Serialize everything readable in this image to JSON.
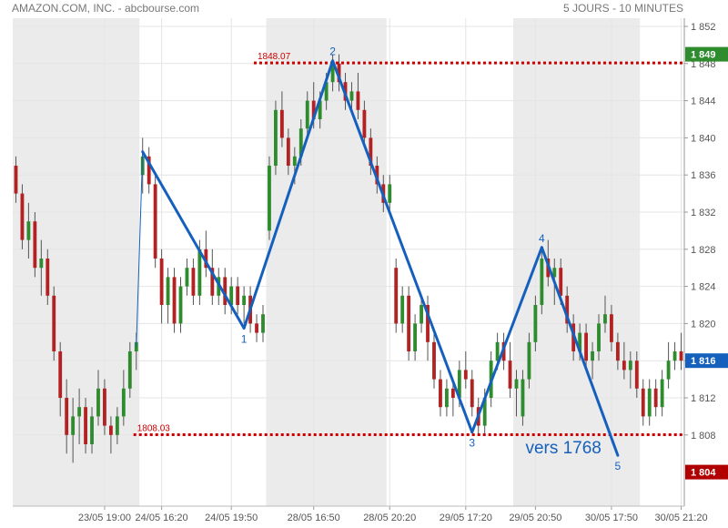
{
  "header": {
    "instrument": "AMAZON.COM, INC. - abcbourse.com",
    "period": "5 JOURS - 10 MINUTES"
  },
  "colors": {
    "up": "#2e8b2e",
    "down": "#b22222",
    "wick": "#555555",
    "session_shade": "#ebebeb",
    "grid": "#e4e4e4",
    "wave_line": "#1560bd",
    "level_line": "#cc0000",
    "badge_high": "#2e8b2e",
    "badge_last": "#1560bd",
    "badge_low": "#b00000"
  },
  "chart_data": {
    "type": "candlestick",
    "ylim": [
      1802,
      1852
    ],
    "y_ticks": [
      "1 852",
      "1 848",
      "1 844",
      "1 840",
      "1 836",
      "1 832",
      "1 828",
      "1 824",
      "1 820",
      "1 816",
      "1 812",
      "1 808"
    ],
    "y_tick_values": [
      1852,
      1848,
      1844,
      1840,
      1836,
      1832,
      1828,
      1824,
      1820,
      1816,
      1812,
      1808
    ],
    "x_ticks": [
      "23/05 19:00",
      "24/05 16:20",
      "24/05 19:50",
      "28/05 16:50",
      "28/05 20:20",
      "29/05 17:20",
      "29/05 20:50",
      "30/05 17:50",
      "30/05 21:20"
    ],
    "x_tick_index": [
      14,
      23,
      34,
      47,
      59,
      71,
      82,
      94,
      105
    ],
    "shaded_sessions": [
      [
        0,
        20
      ],
      [
        40,
        59
      ],
      [
        79,
        99
      ]
    ],
    "candles": [
      [
        1837,
        1838,
        1833,
        1834
      ],
      [
        1834,
        1835,
        1828,
        1829
      ],
      [
        1829,
        1833,
        1827,
        1831
      ],
      [
        1831,
        1832,
        1825,
        1826
      ],
      [
        1826,
        1829,
        1823,
        1827
      ],
      [
        1827,
        1828,
        1822,
        1823
      ],
      [
        1823,
        1824,
        1816,
        1817
      ],
      [
        1817,
        1818,
        1810,
        1812
      ],
      [
        1812,
        1814,
        1806,
        1808
      ],
      [
        1808,
        1812,
        1805,
        1810
      ],
      [
        1810,
        1813,
        1807,
        1811
      ],
      [
        1811,
        1812,
        1806,
        1807
      ],
      [
        1807,
        1811,
        1806,
        1810
      ],
      [
        1810,
        1815,
        1809,
        1813
      ],
      [
        1813,
        1814,
        1808,
        1809
      ],
      [
        1809,
        1810,
        1806,
        1808
      ],
      [
        1808,
        1811,
        1807,
        1810
      ],
      [
        1810,
        1815,
        1809,
        1813
      ],
      [
        1813,
        1818,
        1812,
        1817
      ],
      [
        1817,
        1819,
        1815,
        1818
      ],
      [
        1836,
        1840,
        1834,
        1838
      ],
      [
        1838,
        1839,
        1834,
        1835
      ],
      [
        1835,
        1836,
        1826,
        1827
      ],
      [
        1827,
        1828,
        1820,
        1822
      ],
      [
        1822,
        1826,
        1820,
        1825
      ],
      [
        1825,
        1826,
        1819,
        1820
      ],
      [
        1820,
        1825,
        1819,
        1824
      ],
      [
        1824,
        1827,
        1823,
        1826
      ],
      [
        1826,
        1827,
        1822,
        1823
      ],
      [
        1823,
        1829,
        1822,
        1828
      ],
      [
        1828,
        1830,
        1825,
        1826
      ],
      [
        1826,
        1828,
        1822,
        1823
      ],
      [
        1823,
        1826,
        1822,
        1825
      ],
      [
        1825,
        1826,
        1821,
        1822
      ],
      [
        1822,
        1825,
        1821,
        1824
      ],
      [
        1824,
        1825,
        1821,
        1822
      ],
      [
        1822,
        1824,
        1820,
        1823
      ],
      [
        1823,
        1824,
        1819,
        1820
      ],
      [
        1820,
        1821,
        1818,
        1819
      ],
      [
        1819,
        1822,
        1818,
        1821
      ],
      [
        1830,
        1838,
        1829,
        1837
      ],
      [
        1837,
        1844,
        1836,
        1843
      ],
      [
        1843,
        1845,
        1839,
        1840
      ],
      [
        1840,
        1841,
        1836,
        1837
      ],
      [
        1837,
        1839,
        1835,
        1838
      ],
      [
        1838,
        1842,
        1837,
        1841
      ],
      [
        1841,
        1845,
        1840,
        1844
      ],
      [
        1844,
        1846,
        1841,
        1842
      ],
      [
        1842,
        1845,
        1841,
        1844
      ],
      [
        1844,
        1847,
        1843,
        1846
      ],
      [
        1846,
        1849,
        1845,
        1848
      ],
      [
        1848,
        1849,
        1845,
        1846
      ],
      [
        1846,
        1847,
        1843,
        1844
      ],
      [
        1844,
        1846,
        1843,
        1845
      ],
      [
        1845,
        1847,
        1842,
        1843
      ],
      [
        1843,
        1844,
        1839,
        1840
      ],
      [
        1840,
        1841,
        1836,
        1837
      ],
      [
        1837,
        1838,
        1834,
        1835
      ],
      [
        1835,
        1836,
        1832,
        1833
      ],
      [
        1833,
        1836,
        1832,
        1835
      ],
      [
        1826,
        1827,
        1819,
        1820
      ],
      [
        1820,
        1824,
        1819,
        1823
      ],
      [
        1823,
        1824,
        1816,
        1817
      ],
      [
        1817,
        1821,
        1816,
        1820
      ],
      [
        1820,
        1823,
        1819,
        1822
      ],
      [
        1822,
        1823,
        1816,
        1818
      ],
      [
        1818,
        1819,
        1813,
        1814
      ],
      [
        1814,
        1815,
        1810,
        1811
      ],
      [
        1811,
        1814,
        1810,
        1813
      ],
      [
        1813,
        1814,
        1810,
        1812
      ],
      [
        1812,
        1816,
        1811,
        1815
      ],
      [
        1815,
        1817,
        1813,
        1814
      ],
      [
        1814,
        1815,
        1810,
        1811
      ],
      [
        1811,
        1812,
        1808,
        1809
      ],
      [
        1809,
        1813,
        1808,
        1812
      ],
      [
        1812,
        1817,
        1811,
        1816
      ],
      [
        1816,
        1819,
        1815,
        1818
      ],
      [
        1818,
        1819,
        1815,
        1816
      ],
      [
        1816,
        1818,
        1812,
        1813
      ],
      [
        1813,
        1815,
        1810,
        1814
      ],
      [
        1810,
        1815,
        1809,
        1814
      ],
      [
        1814,
        1819,
        1813,
        1818
      ],
      [
        1818,
        1823,
        1817,
        1822
      ],
      [
        1822,
        1828,
        1821,
        1827
      ],
      [
        1827,
        1829,
        1824,
        1825
      ],
      [
        1825,
        1827,
        1822,
        1826
      ],
      [
        1826,
        1827,
        1822,
        1823
      ],
      [
        1823,
        1824,
        1819,
        1820
      ],
      [
        1820,
        1821,
        1816,
        1817
      ],
      [
        1817,
        1820,
        1816,
        1819
      ],
      [
        1819,
        1820,
        1815,
        1816
      ],
      [
        1816,
        1818,
        1814,
        1817
      ],
      [
        1817,
        1821,
        1816,
        1820
      ],
      [
        1820,
        1823,
        1819,
        1821
      ],
      [
        1821,
        1822,
        1817,
        1818
      ],
      [
        1818,
        1819,
        1815,
        1816
      ],
      [
        1816,
        1818,
        1814,
        1815
      ],
      [
        1815,
        1817,
        1813,
        1816
      ],
      [
        1816,
        1817,
        1812,
        1813
      ],
      [
        1813,
        1814,
        1809,
        1810
      ],
      [
        1810,
        1814,
        1809,
        1813
      ],
      [
        1813,
        1814,
        1810,
        1811
      ],
      [
        1811,
        1815,
        1810,
        1814
      ],
      [
        1814,
        1818,
        1813,
        1816
      ],
      [
        1816,
        1818,
        1815,
        1817
      ],
      [
        1817,
        1819,
        1815,
        1816
      ]
    ],
    "levels": [
      {
        "value": 1848.07,
        "label": "1848.07"
      },
      {
        "value": 1808.03,
        "label": "1808.03"
      }
    ],
    "wave_points": [
      {
        "index": 19,
        "value": 1817.5,
        "label": ""
      },
      {
        "index": 20,
        "value": 1838.5,
        "label": ""
      },
      {
        "index": 36,
        "value": 1819.5,
        "label": "1"
      },
      {
        "index": 50,
        "value": 1848.3,
        "label": "2"
      },
      {
        "index": 72,
        "value": 1808.3,
        "label": "3"
      },
      {
        "index": 83,
        "value": 1828.2,
        "label": "4"
      },
      {
        "index": 95,
        "value": 1805.8,
        "label": "5"
      }
    ],
    "wave_connector_count": 1,
    "projection_text": "vers 1768",
    "badges": [
      {
        "value": 1849,
        "label": "1 849",
        "kind": "high"
      },
      {
        "value": 1816,
        "label": "1 816",
        "kind": "last"
      },
      {
        "value": 1804,
        "label": "1 804",
        "kind": "low"
      }
    ]
  }
}
